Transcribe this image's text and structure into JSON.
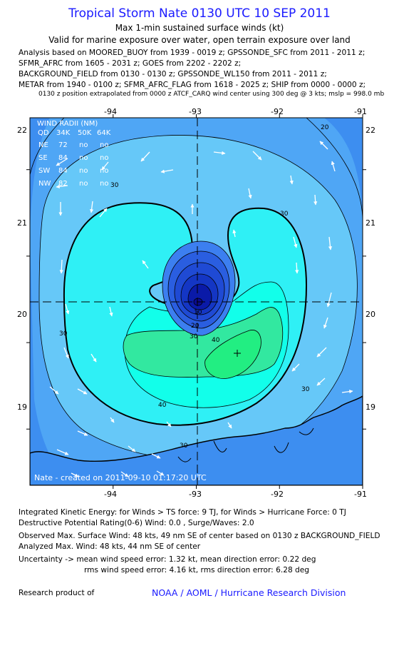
{
  "header": {
    "title": "Tropical Storm Nate 0130 UTC 10 SEP 2011",
    "subtitle1": "Max 1-min sustained surface winds (kt)",
    "subtitle2": "Valid for marine exposure over water, open terrain exposure over land",
    "analysis_lines": [
      "Analysis based on MOORED_BUOY from 1939 - 0019 z; GPSSONDE_SFC from 2011 - 2011 z;",
      "SFMR_AFRC from 1605 - 2031 z; GOES from 2202 - 2202 z;",
      "BACKGROUND_FIELD from 0130 - 0130 z; GPSSONDE_WL150 from 2011 - 2011 z;",
      "METAR from 1940 - 0100 z; SFMR_AFRC_FLAG from 1618 - 2025 z; SHIP from 0000 - 0000 z;"
    ],
    "position_note": "0130 z position extrapolated from 0000 z ATCF_CARQ wind center using 300 deg @ 3 kts; mslp = 998.0 mb"
  },
  "map": {
    "lon_ticks": [
      "-94",
      "-93",
      "-92",
      "-91"
    ],
    "lat_ticks": [
      "22",
      "21",
      "20",
      "19"
    ],
    "lon_values": [
      -94,
      -93,
      -92,
      -91
    ],
    "lat_values": [
      22,
      21,
      20,
      19
    ],
    "lon_range": [
      -95.0,
      -91.0
    ],
    "lat_range": [
      18.35,
      22.6
    ],
    "center": {
      "lon": -93.0,
      "lat": 20.1
    },
    "max_wind_marker": {
      "lon": -92.5,
      "lat": 19.6
    },
    "contour_labels": [
      "20",
      "30",
      "30",
      "30",
      "30",
      "30",
      "40",
      "40",
      "10",
      "20",
      "30"
    ],
    "created_text": "Nate - created on 2011-09-10 01:17:20 UTC",
    "colors": {
      "band_outer": "#3d8ef0",
      "band_20": "#4fa6f5",
      "band_30": "#66c8f8",
      "band_35": "#2ff0f5",
      "band_40": "#12ffea",
      "band_45": "#32e8a0",
      "band_48": "#22ee82",
      "eye_light": "#3c7ff0",
      "eye_mid": "#2a5ee0",
      "eye_deep": "#1436c4",
      "eye_core": "#0a1aa8"
    }
  },
  "wind_radii": {
    "title": "WIND RADII (NM)",
    "columns": [
      "QD",
      "34K",
      "50K",
      "64K"
    ],
    "rows": [
      [
        "NE",
        "72",
        "no",
        "no"
      ],
      [
        "SE",
        "84",
        "no",
        "no"
      ],
      [
        "SW",
        "84",
        "no",
        "no"
      ],
      [
        "NW",
        "82",
        "no",
        "no"
      ]
    ]
  },
  "footer": {
    "ike": "Integrated Kinetic Energy:  for Winds > TS force: 9 TJ,  for Winds > Hurricane Force: 0 TJ",
    "drp": "Destructive Potential Rating(0-6)   Wind: 0.0 , Surge/Waves: 2.0",
    "observed": "Observed Max. Surface Wind: 48 kts, 49 nm SE of center based on 0130 z BACKGROUND_FIELD",
    "analyzed": "Analyzed Max. Wind: 48 kts, 44 nm SE of center",
    "uncertainty1": "Uncertainty -> mean wind speed error: 1.32 kt,   mean direction error: 0.22 deg",
    "uncertainty2": "rms wind speed error: 4.16 kt,   rms direction error: 6.28 deg",
    "research": "Research product of",
    "org": "NOAA / AOML / Hurricane Research Division"
  }
}
